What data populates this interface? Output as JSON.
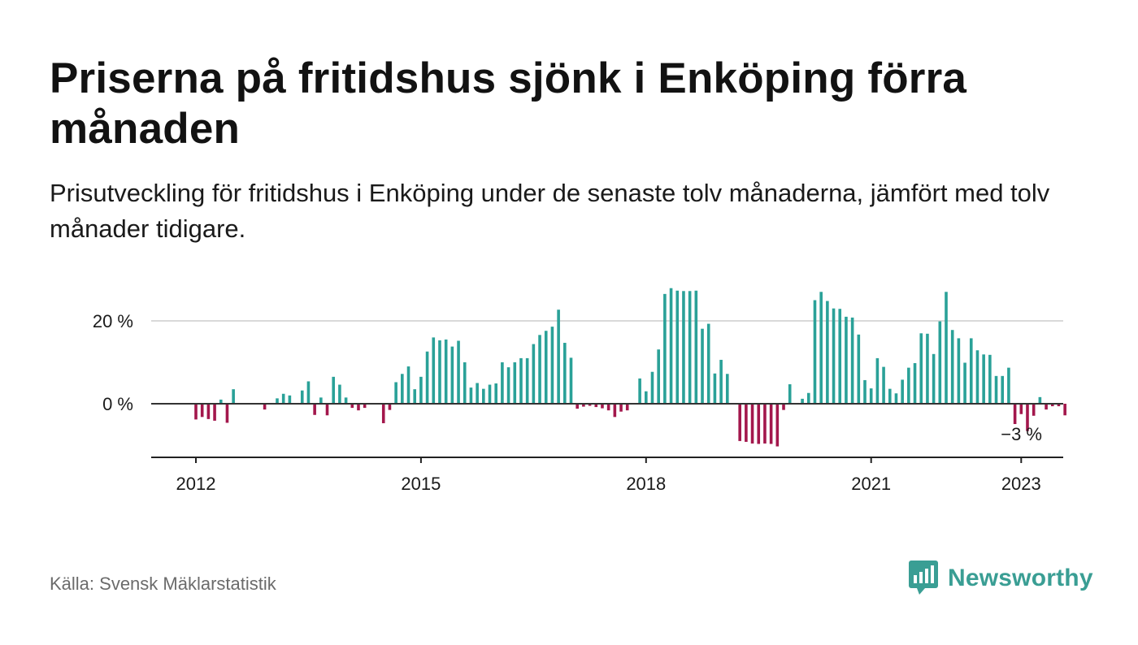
{
  "header": {
    "title": "Priserna på fritidshus sjönk i Enköping förra månaden",
    "subtitle": "Prisutveckling för fritidshus i Enköping under de senaste tolv månaderna, jämfört med tolv månader tidigare."
  },
  "footer": {
    "source": "Källa: Svensk Mäklarstatistik",
    "brand": "Newsworthy",
    "brand_icon": "bar-chart-speech-bubble-icon"
  },
  "colors": {
    "positive": "#2aa198",
    "negative": "#a3174c",
    "brand": "#3a9e94",
    "gridline": "#d9d9d9",
    "zero_line": "#333333"
  },
  "chart_data": {
    "type": "bar",
    "title": "",
    "xlabel": "",
    "ylabel": "",
    "x_ticks": [
      "2012",
      "2015",
      "2018",
      "2021",
      "2023"
    ],
    "y_ticks": [
      "0 %",
      "20 %"
    ],
    "ylim": [
      -13,
      28
    ],
    "grid": "horizontal",
    "start": "2012-01",
    "last_value_label": "−3 %",
    "values": [
      -3.8,
      -3.2,
      -3.7,
      -4.1,
      1.0,
      -4.6,
      3.5,
      null,
      null,
      null,
      null,
      -1.4,
      null,
      1.3,
      2.4,
      2.0,
      null,
      3.2,
      5.4,
      -2.7,
      1.5,
      -2.8,
      6.5,
      4.6,
      1.5,
      -1.0,
      -1.6,
      -1.0,
      null,
      null,
      -4.7,
      -1.5,
      5.2,
      7.2,
      9.0,
      3.5,
      6.5,
      12.6,
      16.0,
      15.3,
      15.5,
      13.8,
      15.2,
      10.0,
      3.9,
      5.0,
      3.6,
      4.6,
      4.9,
      10.0,
      8.8,
      10.0,
      11.0,
      11.0,
      14.4,
      16.6,
      17.6,
      18.6,
      22.7,
      14.7,
      11.1,
      -1.2,
      -0.7,
      -0.5,
      -0.8,
      -1.1,
      -1.6,
      -3.2,
      -1.9,
      -1.6,
      null,
      6.1,
      3.0,
      7.7,
      13.1,
      26.5,
      27.9,
      27.3,
      27.2,
      27.2,
      27.3,
      18.1,
      19.3,
      7.3,
      10.6,
      7.2,
      null,
      -9.0,
      -9.2,
      -9.6,
      -9.7,
      -9.6,
      -9.7,
      -10.3,
      -1.5,
      4.7,
      null,
      1.2,
      2.6,
      25.0,
      27.0,
      24.8,
      23.0,
      22.9,
      21.0,
      20.8,
      16.7,
      5.7,
      3.7,
      11.0,
      8.9,
      3.6,
      2.5,
      5.8,
      8.7,
      9.8,
      17.0,
      16.9,
      12.0,
      19.9,
      27.0,
      17.8,
      15.8,
      9.9,
      15.8,
      12.9,
      11.9,
      11.8,
      6.7,
      6.7,
      8.7,
      -4.9,
      -2.5,
      -6.6,
      -2.9,
      1.6,
      -1.4,
      -0.6,
      -0.6,
      -2.8
    ]
  }
}
